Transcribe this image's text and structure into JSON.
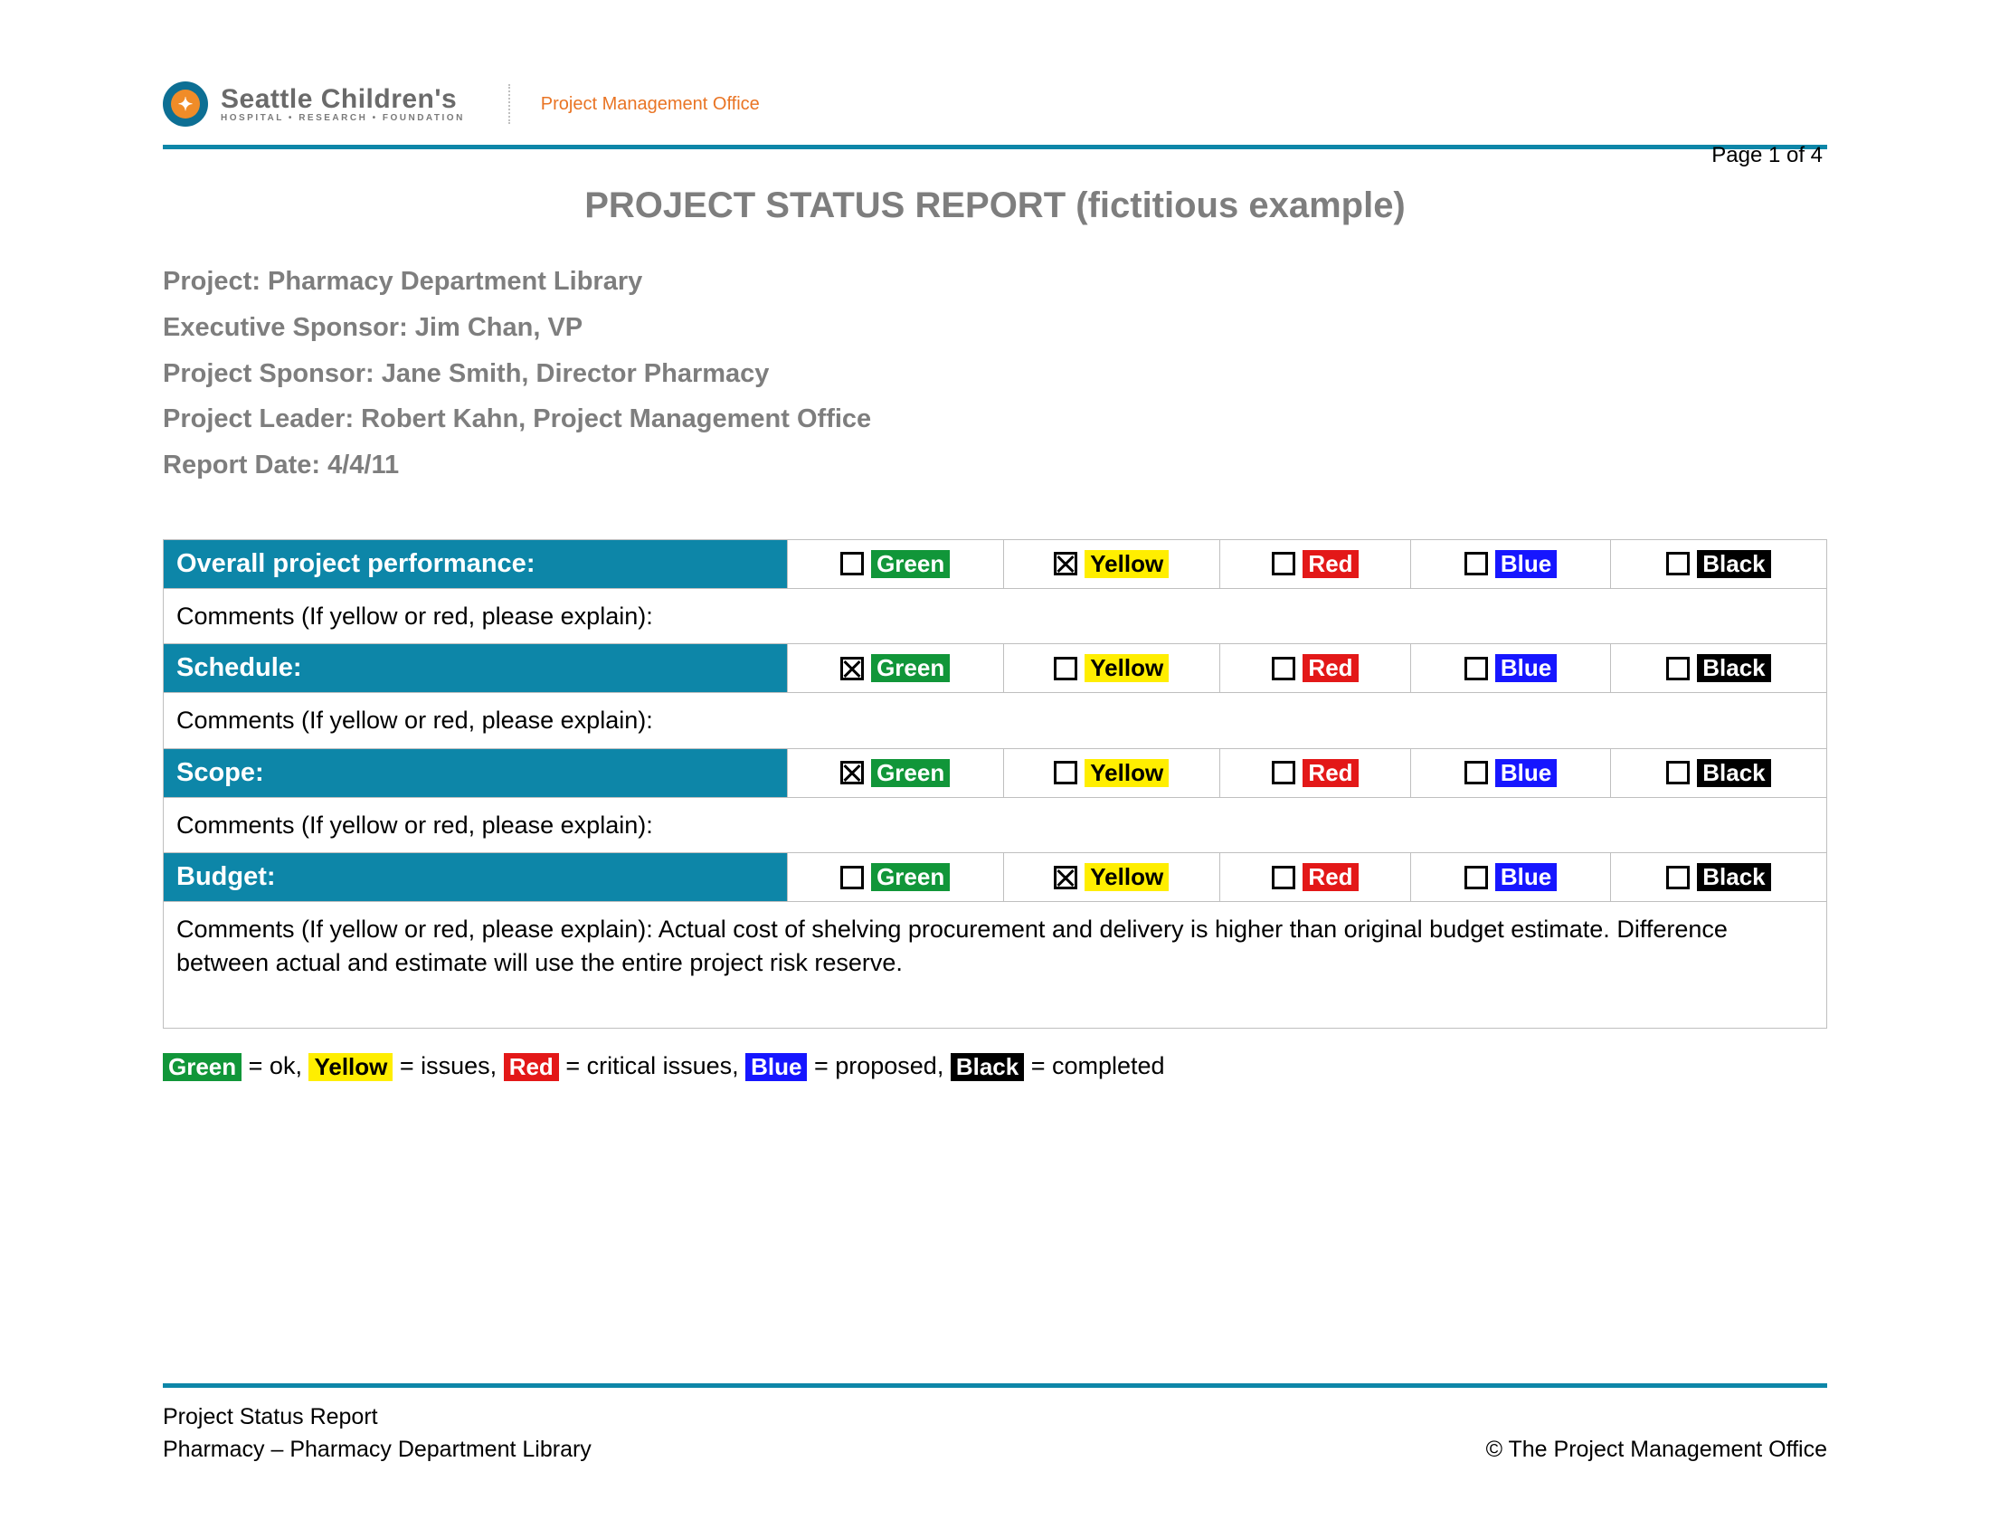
{
  "colors": {
    "brand_teal": "#0d86a8",
    "brand_orange": "#e97424",
    "grey_text": "#7e7e7e",
    "border": "#bfbfbf",
    "green": "#119639",
    "yellow": "#ffee00",
    "red": "#e31818",
    "blue": "#1616ff",
    "black": "#000000",
    "white": "#ffffff"
  },
  "logo": {
    "main": "Seattle Children's",
    "sub": "HOSPITAL • RESEARCH • FOUNDATION",
    "dept": "Project Management Office"
  },
  "page_number": "Page 1 of 4",
  "title": "PROJECT STATUS REPORT (fictitious example)",
  "meta": {
    "project": "Project: Pharmacy Department Library",
    "exec_sponsor": "Executive Sponsor: Jim Chan, VP",
    "project_sponsor": "Project Sponsor:  Jane Smith, Director Pharmacy",
    "project_leader": "Project Leader: Robert Kahn, Project Management Office",
    "report_date": "Report Date: 4/4/11"
  },
  "status_options": [
    "Green",
    "Yellow",
    "Red",
    "Blue",
    "Black"
  ],
  "option_colors": {
    "Green": "green",
    "Yellow": "yellow",
    "Red": "red",
    "Blue": "blue",
    "Black": "black"
  },
  "col_widths_pct": [
    37.5,
    13,
    13,
    11.5,
    12,
    13
  ],
  "rows": [
    {
      "label": "Overall project performance:",
      "selected": "Yellow",
      "comment": "Comments (If yellow or red, please explain):"
    },
    {
      "label": "Schedule:",
      "selected": "Green",
      "comment": "Comments (If yellow or red, please explain):"
    },
    {
      "label": "Scope:",
      "selected": "Green",
      "comment": "Comments (If yellow or red, please explain):"
    },
    {
      "label": "Budget:",
      "selected": "Yellow",
      "comment": "Comments (If yellow or red, please explain):  Actual cost of shelving procurement and delivery is higher than original budget estimate.  Difference between actual and estimate will use the entire project risk reserve.",
      "comment_tall": true
    }
  ],
  "legend": [
    {
      "tag": "Green",
      "color": "green",
      "text": " = ok, "
    },
    {
      "tag": "Yellow",
      "color": "yellow",
      "text": " = issues, "
    },
    {
      "tag": "Red",
      "color": "red",
      "text": " = critical issues, "
    },
    {
      "tag": "Blue",
      "color": "blue",
      "text": " = proposed, "
    },
    {
      "tag": "Black",
      "color": "black",
      "text": " = completed"
    }
  ],
  "footer": {
    "line1": "Project Status Report",
    "line2": "Pharmacy – Pharmacy Department Library",
    "right": "© The Project Management Office"
  }
}
